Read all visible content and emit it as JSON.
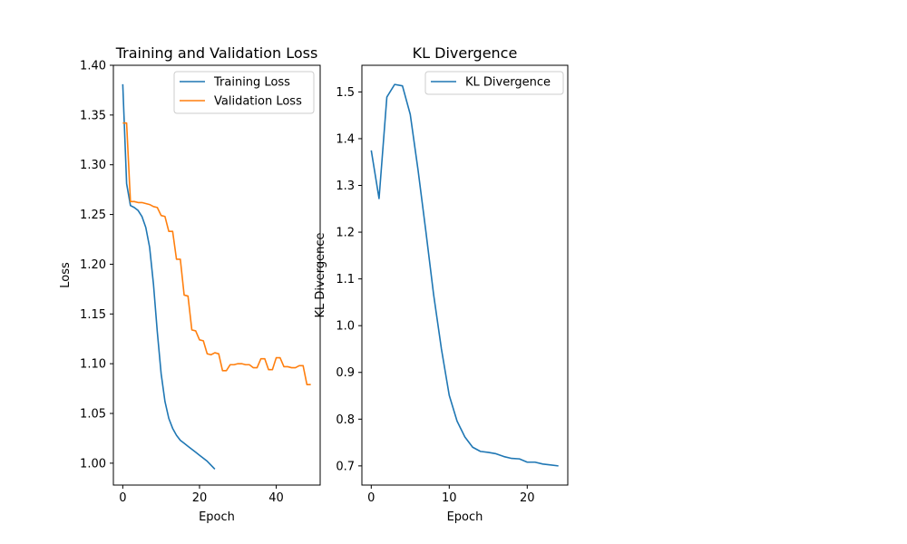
{
  "chart_data": [
    {
      "type": "line",
      "title": "Training and Validation Loss",
      "xlabel": "Epoch",
      "ylabel": "Loss",
      "xlim": [
        -2.45,
        51.45
      ],
      "ylim": [
        0.978,
        1.4
      ],
      "xticks": [
        0,
        20,
        40
      ],
      "yticks": [
        1.0,
        1.05,
        1.1,
        1.15,
        1.2,
        1.25,
        1.3,
        1.35,
        1.4
      ],
      "ytick_labels": [
        "1.00",
        "1.05",
        "1.10",
        "1.15",
        "1.20",
        "1.25",
        "1.30",
        "1.35",
        "1.40"
      ],
      "grid": false,
      "legend": "top-right",
      "series": [
        {
          "name": "Training Loss",
          "color": "#1f77b4",
          "x": [
            0,
            1,
            2,
            3,
            4,
            5,
            6,
            7,
            8,
            9,
            10,
            11,
            12,
            13,
            14,
            15,
            16,
            17,
            18,
            19,
            20,
            21,
            22,
            23,
            24
          ],
          "values": [
            1.381,
            1.281,
            1.259,
            1.257,
            1.254,
            1.248,
            1.237,
            1.217,
            1.18,
            1.132,
            1.09,
            1.062,
            1.045,
            1.035,
            1.028,
            1.023,
            1.02,
            1.017,
            1.014,
            1.011,
            1.008,
            1.005,
            1.002,
            0.998,
            0.994
          ]
        },
        {
          "name": "Validation Loss",
          "color": "#ff7f0e",
          "x": [
            0,
            1,
            2,
            3,
            4,
            5,
            6,
            7,
            8,
            9,
            10,
            11,
            12,
            13,
            14,
            15,
            16,
            17,
            18,
            19,
            20,
            21,
            22,
            23,
            24,
            25,
            26,
            27,
            28,
            29,
            30,
            31,
            32,
            33,
            34,
            35,
            36,
            37,
            38,
            39,
            40,
            41,
            42,
            43,
            44,
            45,
            46,
            47,
            48,
            49
          ],
          "values": [
            1.342,
            1.342,
            1.263,
            1.263,
            1.262,
            1.262,
            1.261,
            1.26,
            1.258,
            1.257,
            1.249,
            1.248,
            1.233,
            1.233,
            1.205,
            1.205,
            1.169,
            1.168,
            1.134,
            1.133,
            1.124,
            1.123,
            1.11,
            1.109,
            1.111,
            1.11,
            1.093,
            1.093,
            1.099,
            1.099,
            1.1,
            1.1,
            1.099,
            1.099,
            1.096,
            1.096,
            1.105,
            1.105,
            1.094,
            1.094,
            1.106,
            1.106,
            1.097,
            1.097,
            1.096,
            1.096,
            1.098,
            1.098,
            1.079,
            1.079
          ]
        }
      ]
    },
    {
      "type": "line",
      "title": "KL Divergence",
      "xlabel": "Epoch",
      "ylabel": "KL Divergence",
      "xlim": [
        -1.2,
        25.2
      ],
      "ylim": [
        0.659,
        1.557
      ],
      "xticks": [
        0,
        10,
        20
      ],
      "yticks": [
        0.7,
        0.8,
        0.9,
        1.0,
        1.1,
        1.2,
        1.3,
        1.4,
        1.5
      ],
      "ytick_labels": [
        "0.7",
        "0.8",
        "0.9",
        "1.0",
        "1.1",
        "1.2",
        "1.3",
        "1.4",
        "1.5"
      ],
      "grid": false,
      "legend": "top-right",
      "series": [
        {
          "name": "KL Divergence",
          "color": "#1f77b4",
          "x": [
            0,
            1,
            2,
            3,
            4,
            5,
            6,
            7,
            8,
            9,
            10,
            11,
            12,
            13,
            14,
            15,
            16,
            17,
            18,
            19,
            20,
            21,
            22,
            23,
            24
          ],
          "values": [
            1.375,
            1.272,
            1.489,
            1.516,
            1.513,
            1.452,
            1.333,
            1.202,
            1.066,
            0.95,
            0.851,
            0.796,
            0.762,
            0.74,
            0.731,
            0.729,
            0.726,
            0.72,
            0.716,
            0.715,
            0.708,
            0.708,
            0.704,
            0.702,
            0.7
          ]
        }
      ]
    }
  ]
}
